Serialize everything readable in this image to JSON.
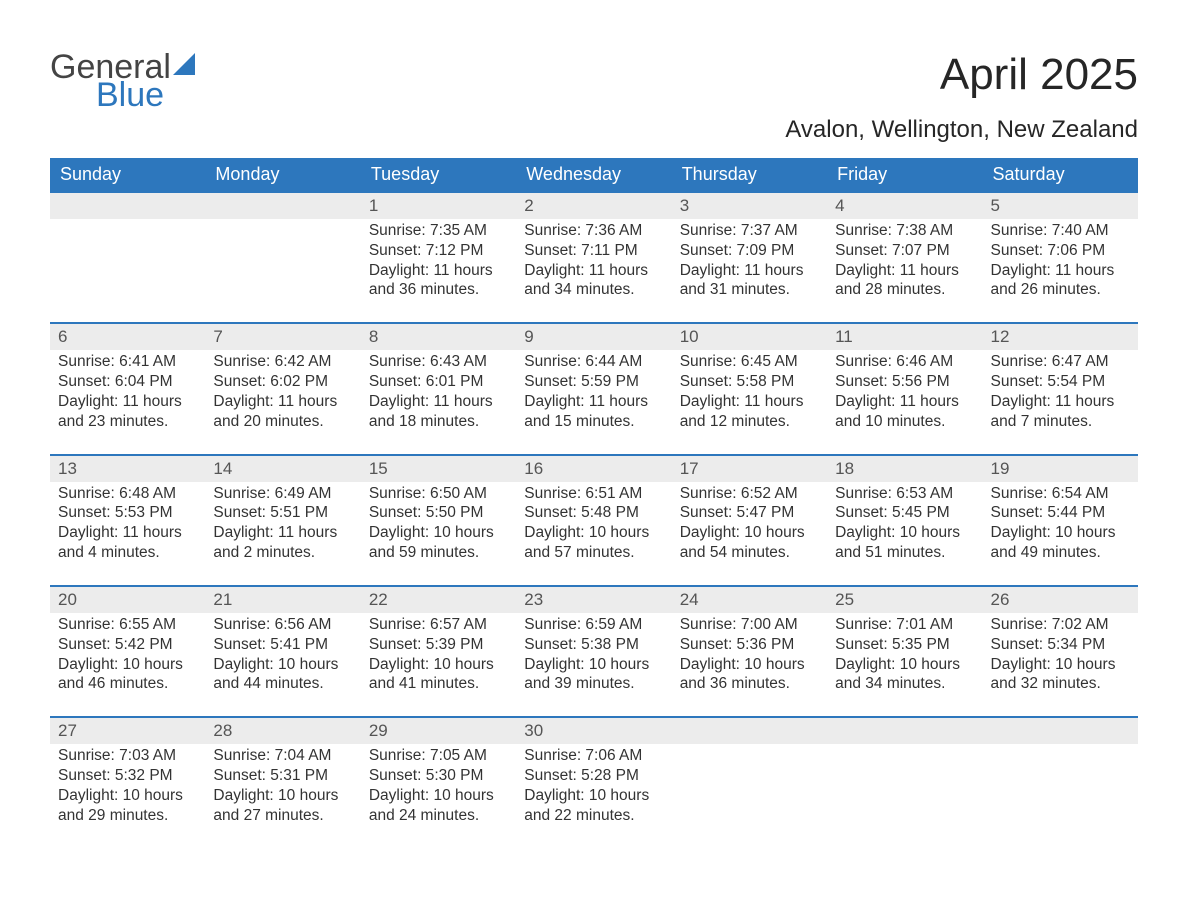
{
  "logo": {
    "word1": "General",
    "word2": "Blue",
    "accent_color": "#2d77bd",
    "text_color": "#444444"
  },
  "header": {
    "title": "April 2025",
    "subtitle": "Avalon, Wellington, New Zealand"
  },
  "colors": {
    "header_bg": "#2d77bd",
    "header_text": "#ffffff",
    "week_rule": "#2d77bd",
    "daynum_bg": "#ececec",
    "daynum_text": "#555555",
    "body_text": "#333333",
    "page_bg": "#ffffff"
  },
  "fonts": {
    "base_family": "Arial",
    "title_pt": 44,
    "subtitle_pt": 24,
    "header_pt": 18,
    "daynum_pt": 17,
    "body_pt": 15.5
  },
  "day_labels": [
    "Sunday",
    "Monday",
    "Tuesday",
    "Wednesday",
    "Thursday",
    "Friday",
    "Saturday"
  ],
  "weeks": [
    [
      {
        "n": "",
        "sunrise": "",
        "sunset": "",
        "daylight": ""
      },
      {
        "n": "",
        "sunrise": "",
        "sunset": "",
        "daylight": ""
      },
      {
        "n": "1",
        "sunrise": "Sunrise: 7:35 AM",
        "sunset": "Sunset: 7:12 PM",
        "daylight": "Daylight: 11 hours and 36 minutes."
      },
      {
        "n": "2",
        "sunrise": "Sunrise: 7:36 AM",
        "sunset": "Sunset: 7:11 PM",
        "daylight": "Daylight: 11 hours and 34 minutes."
      },
      {
        "n": "3",
        "sunrise": "Sunrise: 7:37 AM",
        "sunset": "Sunset: 7:09 PM",
        "daylight": "Daylight: 11 hours and 31 minutes."
      },
      {
        "n": "4",
        "sunrise": "Sunrise: 7:38 AM",
        "sunset": "Sunset: 7:07 PM",
        "daylight": "Daylight: 11 hours and 28 minutes."
      },
      {
        "n": "5",
        "sunrise": "Sunrise: 7:40 AM",
        "sunset": "Sunset: 7:06 PM",
        "daylight": "Daylight: 11 hours and 26 minutes."
      }
    ],
    [
      {
        "n": "6",
        "sunrise": "Sunrise: 6:41 AM",
        "sunset": "Sunset: 6:04 PM",
        "daylight": "Daylight: 11 hours and 23 minutes."
      },
      {
        "n": "7",
        "sunrise": "Sunrise: 6:42 AM",
        "sunset": "Sunset: 6:02 PM",
        "daylight": "Daylight: 11 hours and 20 minutes."
      },
      {
        "n": "8",
        "sunrise": "Sunrise: 6:43 AM",
        "sunset": "Sunset: 6:01 PM",
        "daylight": "Daylight: 11 hours and 18 minutes."
      },
      {
        "n": "9",
        "sunrise": "Sunrise: 6:44 AM",
        "sunset": "Sunset: 5:59 PM",
        "daylight": "Daylight: 11 hours and 15 minutes."
      },
      {
        "n": "10",
        "sunrise": "Sunrise: 6:45 AM",
        "sunset": "Sunset: 5:58 PM",
        "daylight": "Daylight: 11 hours and 12 minutes."
      },
      {
        "n": "11",
        "sunrise": "Sunrise: 6:46 AM",
        "sunset": "Sunset: 5:56 PM",
        "daylight": "Daylight: 11 hours and 10 minutes."
      },
      {
        "n": "12",
        "sunrise": "Sunrise: 6:47 AM",
        "sunset": "Sunset: 5:54 PM",
        "daylight": "Daylight: 11 hours and 7 minutes."
      }
    ],
    [
      {
        "n": "13",
        "sunrise": "Sunrise: 6:48 AM",
        "sunset": "Sunset: 5:53 PM",
        "daylight": "Daylight: 11 hours and 4 minutes."
      },
      {
        "n": "14",
        "sunrise": "Sunrise: 6:49 AM",
        "sunset": "Sunset: 5:51 PM",
        "daylight": "Daylight: 11 hours and 2 minutes."
      },
      {
        "n": "15",
        "sunrise": "Sunrise: 6:50 AM",
        "sunset": "Sunset: 5:50 PM",
        "daylight": "Daylight: 10 hours and 59 minutes."
      },
      {
        "n": "16",
        "sunrise": "Sunrise: 6:51 AM",
        "sunset": "Sunset: 5:48 PM",
        "daylight": "Daylight: 10 hours and 57 minutes."
      },
      {
        "n": "17",
        "sunrise": "Sunrise: 6:52 AM",
        "sunset": "Sunset: 5:47 PM",
        "daylight": "Daylight: 10 hours and 54 minutes."
      },
      {
        "n": "18",
        "sunrise": "Sunrise: 6:53 AM",
        "sunset": "Sunset: 5:45 PM",
        "daylight": "Daylight: 10 hours and 51 minutes."
      },
      {
        "n": "19",
        "sunrise": "Sunrise: 6:54 AM",
        "sunset": "Sunset: 5:44 PM",
        "daylight": "Daylight: 10 hours and 49 minutes."
      }
    ],
    [
      {
        "n": "20",
        "sunrise": "Sunrise: 6:55 AM",
        "sunset": "Sunset: 5:42 PM",
        "daylight": "Daylight: 10 hours and 46 minutes."
      },
      {
        "n": "21",
        "sunrise": "Sunrise: 6:56 AM",
        "sunset": "Sunset: 5:41 PM",
        "daylight": "Daylight: 10 hours and 44 minutes."
      },
      {
        "n": "22",
        "sunrise": "Sunrise: 6:57 AM",
        "sunset": "Sunset: 5:39 PM",
        "daylight": "Daylight: 10 hours and 41 minutes."
      },
      {
        "n": "23",
        "sunrise": "Sunrise: 6:59 AM",
        "sunset": "Sunset: 5:38 PM",
        "daylight": "Daylight: 10 hours and 39 minutes."
      },
      {
        "n": "24",
        "sunrise": "Sunrise: 7:00 AM",
        "sunset": "Sunset: 5:36 PM",
        "daylight": "Daylight: 10 hours and 36 minutes."
      },
      {
        "n": "25",
        "sunrise": "Sunrise: 7:01 AM",
        "sunset": "Sunset: 5:35 PM",
        "daylight": "Daylight: 10 hours and 34 minutes."
      },
      {
        "n": "26",
        "sunrise": "Sunrise: 7:02 AM",
        "sunset": "Sunset: 5:34 PM",
        "daylight": "Daylight: 10 hours and 32 minutes."
      }
    ],
    [
      {
        "n": "27",
        "sunrise": "Sunrise: 7:03 AM",
        "sunset": "Sunset: 5:32 PM",
        "daylight": "Daylight: 10 hours and 29 minutes."
      },
      {
        "n": "28",
        "sunrise": "Sunrise: 7:04 AM",
        "sunset": "Sunset: 5:31 PM",
        "daylight": "Daylight: 10 hours and 27 minutes."
      },
      {
        "n": "29",
        "sunrise": "Sunrise: 7:05 AM",
        "sunset": "Sunset: 5:30 PM",
        "daylight": "Daylight: 10 hours and 24 minutes."
      },
      {
        "n": "30",
        "sunrise": "Sunrise: 7:06 AM",
        "sunset": "Sunset: 5:28 PM",
        "daylight": "Daylight: 10 hours and 22 minutes."
      },
      {
        "n": "",
        "sunrise": "",
        "sunset": "",
        "daylight": ""
      },
      {
        "n": "",
        "sunrise": "",
        "sunset": "",
        "daylight": ""
      },
      {
        "n": "",
        "sunrise": "",
        "sunset": "",
        "daylight": ""
      }
    ]
  ]
}
